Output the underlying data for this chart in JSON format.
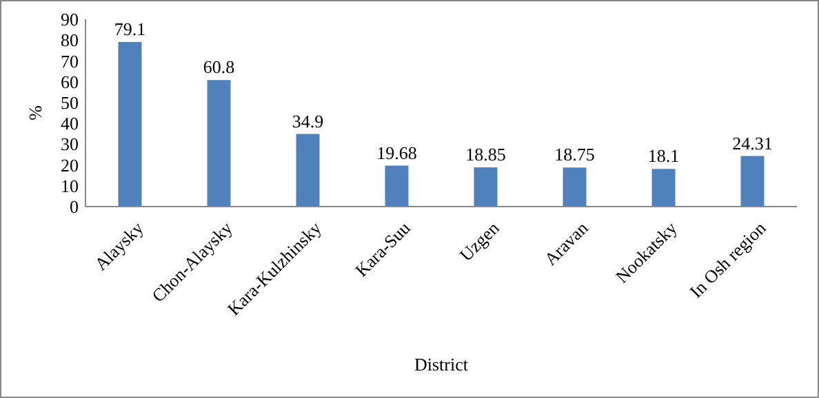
{
  "chart_data": {
    "type": "bar",
    "xlabel": "District",
    "ylabel": "%",
    "categories": [
      "Alaysky",
      "Chon-Alaysky",
      "Kara-Kulzhinsky",
      "Kara-Suu",
      "Uzgen",
      "Aravan",
      "Nookatsky",
      "In Osh region"
    ],
    "values": [
      79.1,
      60.8,
      34.9,
      19.68,
      18.85,
      18.75,
      18.1,
      24.31
    ],
    "color": "#4f81bd",
    "ylim": [
      0,
      90
    ],
    "yticks": [
      0,
      10,
      20,
      30,
      40,
      50,
      60,
      70,
      80,
      90
    ],
    "grid": false,
    "data_labels": true
  }
}
